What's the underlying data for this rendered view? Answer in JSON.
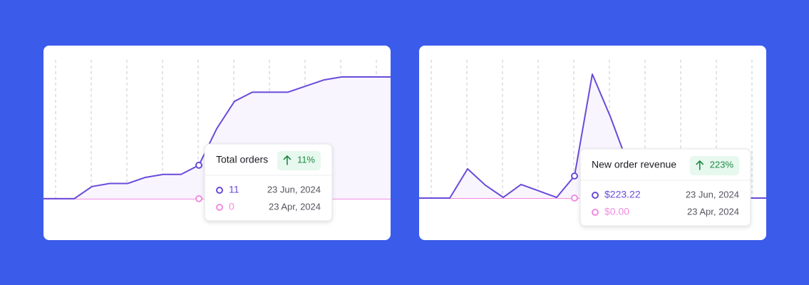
{
  "chart_data": [
    {
      "type": "line",
      "series": [
        {
          "color": "#6a4bd9",
          "values": [
            0,
            0,
            0,
            4,
            5,
            5,
            7,
            8,
            8,
            11,
            23,
            32,
            35,
            35,
            35,
            37,
            39,
            40,
            40,
            40,
            40
          ]
        },
        {
          "color": "#f28ce0",
          "values": [
            0,
            0,
            0,
            0,
            0,
            0,
            0,
            0,
            0,
            0,
            0,
            0,
            0,
            0,
            0,
            0,
            0,
            0,
            0,
            0,
            0
          ]
        }
      ],
      "ylim": [
        -13.6,
        50.3
      ],
      "tooltip": {
        "title": "Total orders",
        "change": "11%",
        "rows": [
          {
            "value_label": "11",
            "date": "23 Jun, 2024"
          },
          {
            "value_label": "0",
            "date": "23 Apr, 2024"
          }
        ]
      }
    },
    {
      "type": "line",
      "series": [
        {
          "color": "#6a4bd9",
          "values": [
            0,
            0,
            0,
            295,
            130,
            7,
            137,
            72,
            7,
            223.22,
            1252,
            828,
            345,
            0,
            0,
            0,
            0,
            0,
            0,
            0,
            0
          ]
        },
        {
          "color": "#f28ce0",
          "values": [
            0,
            0,
            0,
            0,
            0,
            0,
            0,
            0,
            0,
            0,
            0,
            0,
            0,
            0,
            0,
            0,
            0,
            0,
            0,
            0,
            0
          ]
        }
      ],
      "ylim": [
        -425,
        1541
      ],
      "tooltip": {
        "title": "New order revenue",
        "change": "223%",
        "rows": [
          {
            "value_label": "$223.22",
            "date": "23 Jun, 2024"
          },
          {
            "value_label": "$0.00",
            "date": "23 Apr, 2024"
          }
        ]
      }
    }
  ]
}
